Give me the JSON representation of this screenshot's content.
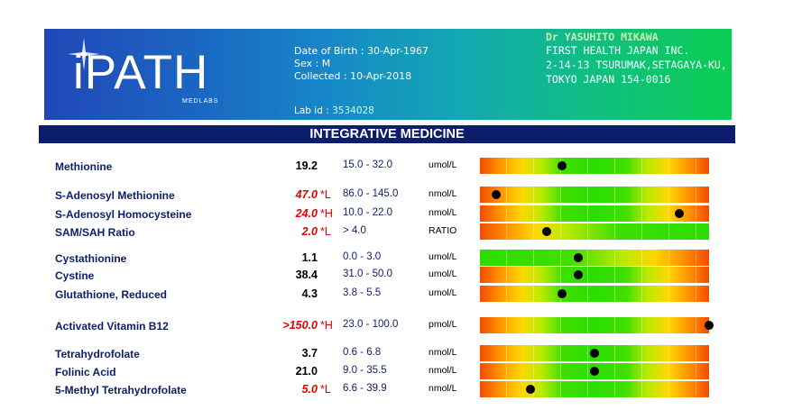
{
  "header": {
    "logo_text": "iPATH",
    "logo_subtext": "MEDLABS",
    "dob_label": "Date of Birth :",
    "dob_value": "30-Apr-1967",
    "sex_label": "Sex :",
    "sex_value": "M",
    "collected_label": "Collected :",
    "collected_value": "10-Apr-2018",
    "labid_label": "Lab id :",
    "labid_value": "3534028",
    "doctor_lines": [
      "Dr YASUHITO MIKAWA",
      "FIRST HEALTH JAPAN INC.",
      "2-14-13 TSURUMAK,SETAGAYA-KU,",
      "TOKYO  JAPAN  154-0016"
    ]
  },
  "section_title": "INTEGRATIVE MEDICINE",
  "colors": {
    "navy": "#0d1d6e",
    "abnormal": "#e00000",
    "optimal": "#2ade00",
    "poor": "#f44b00"
  },
  "tests": [
    {
      "name": "Methionine",
      "result": "19.2",
      "flag": "",
      "range": "15.0 - 32.0",
      "unit": "umol/L",
      "scale": "mid",
      "marker": 0.36
    },
    {
      "name": "S-Adenosyl Methionine",
      "result": "47.0",
      "flag": "*L",
      "range": "86.0 - 145.0",
      "unit": "nmol/L",
      "scale": "mid",
      "marker": 0.07
    },
    {
      "name": "S-Adenosyl Homocysteine",
      "result": "24.0",
      "flag": "*H",
      "range": "10.0 - 22.0",
      "unit": "nmol/L",
      "scale": "mid",
      "marker": 0.87
    },
    {
      "name": "SAM/SAH Ratio",
      "result": "2.0",
      "flag": "*L",
      "range": "> 4.0",
      "unit": "RATIO",
      "scale": "high",
      "marker": 0.29
    },
    {
      "name": "Cystathionine",
      "result": "1.1",
      "flag": "",
      "range": "0.0 - 3.0",
      "unit": "umol/L",
      "scale": "low",
      "marker": 0.43
    },
    {
      "name": "Cystine",
      "result": "38.4",
      "flag": "",
      "range": "31.0 - 50.0",
      "unit": "umol/L",
      "scale": "mid",
      "marker": 0.43
    },
    {
      "name": "Glutathione, Reduced",
      "result": "4.3",
      "flag": "",
      "range": "3.8 - 5.5",
      "unit": "umol/L",
      "scale": "mid",
      "marker": 0.36
    },
    {
      "name": "Activated Vitamin B12",
      "result": ">150.0",
      "flag": "*H",
      "range": "23.0 - 100.0",
      "unit": "pmol/L",
      "scale": "mid",
      "marker": 1.0
    },
    {
      "name": "Tetrahydrofolate",
      "result": "3.7",
      "flag": "",
      "range": "0.6 - 6.8",
      "unit": "nmol/L",
      "scale": "mid",
      "marker": 0.5
    },
    {
      "name": "Folinic Acid",
      "result": "21.0",
      "flag": "",
      "range": "9.0 - 35.5",
      "unit": "nmol/L",
      "scale": "mid",
      "marker": 0.5
    },
    {
      "name": "5-Methyl Tetrahydrofolate",
      "result": "5.0",
      "flag": "*L",
      "range": "6.6 - 39.9",
      "unit": "nmol/L",
      "scale": "mid",
      "marker": 0.22
    }
  ]
}
